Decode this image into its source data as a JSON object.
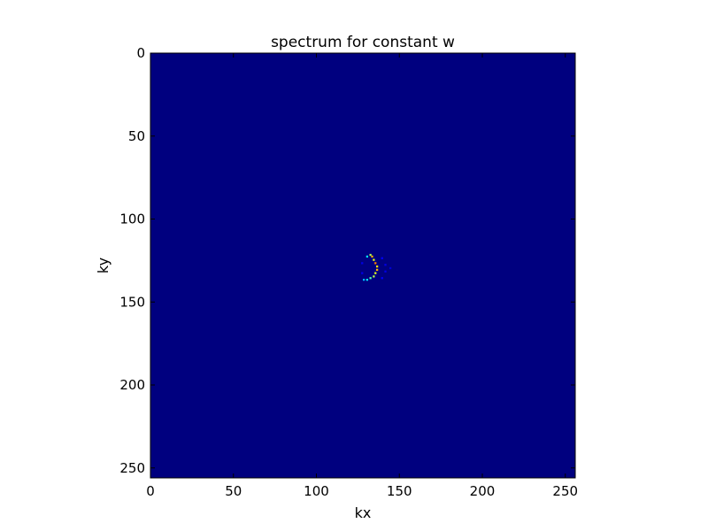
{
  "chart_data": {
    "type": "heatmap",
    "title": "spectrum for constant w",
    "xlabel": "kx",
    "ylabel": "ky",
    "xlim": [
      0,
      256
    ],
    "ylim": [
      256,
      0
    ],
    "xticks": [
      0,
      50,
      100,
      150,
      200,
      250
    ],
    "yticks": [
      0,
      50,
      100,
      150,
      200,
      250
    ],
    "grid": false,
    "colormap": "jet",
    "background_value": 0,
    "background_color": "#00007f",
    "cells": [
      {
        "x": 130,
        "y": 122,
        "value": 0.35
      },
      {
        "x": 132,
        "y": 121,
        "value": 0.55
      },
      {
        "x": 133,
        "y": 122,
        "value": 0.7
      },
      {
        "x": 134,
        "y": 124,
        "value": 0.6
      },
      {
        "x": 135,
        "y": 126,
        "value": 0.75
      },
      {
        "x": 136,
        "y": 128,
        "value": 0.65
      },
      {
        "x": 136,
        "y": 130,
        "value": 0.7
      },
      {
        "x": 135,
        "y": 132,
        "value": 0.6
      },
      {
        "x": 134,
        "y": 134,
        "value": 0.55
      },
      {
        "x": 132,
        "y": 135,
        "value": 0.45
      },
      {
        "x": 130,
        "y": 136,
        "value": 0.35
      },
      {
        "x": 128,
        "y": 136,
        "value": 0.3
      },
      {
        "x": 139,
        "y": 123,
        "value": 0.12
      },
      {
        "x": 141,
        "y": 127,
        "value": 0.1
      },
      {
        "x": 141,
        "y": 131,
        "value": 0.1
      },
      {
        "x": 139,
        "y": 135,
        "value": 0.12
      },
      {
        "x": 127,
        "y": 126,
        "value": 0.1
      },
      {
        "x": 127,
        "y": 132,
        "value": 0.1
      },
      {
        "x": 144,
        "y": 129,
        "value": 0.08
      }
    ]
  }
}
